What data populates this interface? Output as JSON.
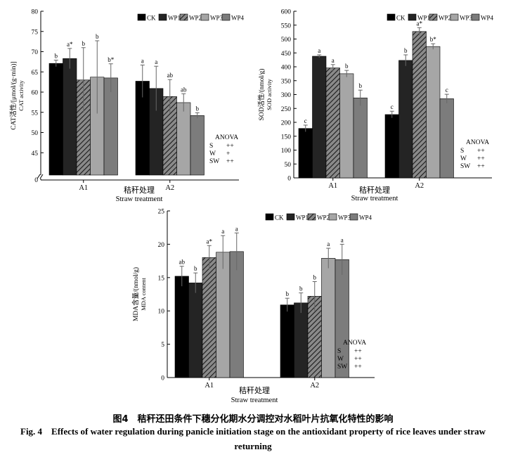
{
  "legend_labels": [
    "CK",
    "WP1",
    "WP2",
    "WP3",
    "WP4"
  ],
  "series_colors": [
    "#000000",
    "#242424",
    "#555555",
    "#a6a6a6",
    "#7c7c7c"
  ],
  "anova_title": "ANOVA",
  "caption_zh": "图4　秸秆还田条件下穗分化期水分调控对水稻叶片抗氧化特性的影响",
  "caption_en": "Fig. 4　Effects of water regulation during panicle initiation stage on the antioxidant property of rice leaves under straw returning",
  "chart_data": [
    {
      "type": "bar",
      "ylabel_zh": "CAT活性/[μmol/(g·min)]",
      "ylabel_en": "CAT activity",
      "xlabel_zh": "秸秆处理",
      "xlabel_en": "Straw treatment",
      "categories": [
        "A1",
        "A2"
      ],
      "axis_break": true,
      "ylim": [
        40,
        80
      ],
      "yticks": [
        45,
        50,
        55,
        60,
        65,
        70,
        75,
        80
      ],
      "ytick_low": 0,
      "grid": false,
      "legend_position": "top-right",
      "series": [
        {
          "name": "CK",
          "values": [
            67.1,
            62.7
          ],
          "errors": [
            0.8,
            4.0
          ],
          "labels": [
            "b",
            "a"
          ]
        },
        {
          "name": "WP1",
          "values": [
            68.3,
            60.9
          ],
          "errors": [
            2.5,
            5.5
          ],
          "labels": [
            "a*",
            "a"
          ]
        },
        {
          "name": "WP2",
          "values": [
            63.0,
            58.9
          ],
          "errors": [
            8.0,
            4.2
          ],
          "labels": [
            "b",
            "ab"
          ]
        },
        {
          "name": "WP3",
          "values": [
            63.7,
            57.4
          ],
          "errors": [
            9.0,
            2.2
          ],
          "labels": [
            "b",
            "ab"
          ]
        },
        {
          "name": "WP4",
          "values": [
            63.5,
            54.2
          ],
          "errors": [
            3.5,
            0.7
          ],
          "labels": [
            "b*",
            "b"
          ]
        }
      ],
      "anova": [
        [
          "S",
          "++"
        ],
        [
          "W",
          "+"
        ],
        [
          "SW",
          "++"
        ]
      ]
    },
    {
      "type": "bar",
      "ylabel_zh": "SOD活性/(nmol/g)",
      "ylabel_en": "SOD activity",
      "xlabel_zh": "秸秆处理",
      "xlabel_en": "Straw treatment",
      "categories": [
        "A1",
        "A2"
      ],
      "ylim": [
        0,
        600
      ],
      "yticks": [
        0,
        50,
        100,
        150,
        200,
        250,
        300,
        350,
        400,
        450,
        500,
        550,
        600
      ],
      "grid": false,
      "legend_position": "top-right",
      "series": [
        {
          "name": "CK",
          "values": [
            178,
            228
          ],
          "errors": [
            12,
            12
          ],
          "labels": [
            "c",
            "c"
          ]
        },
        {
          "name": "WP1",
          "values": [
            438,
            423
          ],
          "errors": [
            5,
            20
          ],
          "labels": [
            "a",
            "b"
          ]
        },
        {
          "name": "WP2",
          "values": [
            396,
            527
          ],
          "errors": [
            12,
            14
          ],
          "labels": [
            "a",
            "a*"
          ]
        },
        {
          "name": "WP3",
          "values": [
            375,
            473
          ],
          "errors": [
            12,
            10
          ],
          "labels": [
            "b",
            "b*"
          ]
        },
        {
          "name": "WP4",
          "values": [
            288,
            285
          ],
          "errors": [
            28,
            16
          ],
          "labels": [
            "b",
            "c"
          ]
        }
      ],
      "anova": [
        [
          "S",
          "++"
        ],
        [
          "W",
          "++"
        ],
        [
          "SW",
          "++"
        ]
      ]
    },
    {
      "type": "bar",
      "ylabel_zh": "MDA含量/(nmol/g)",
      "ylabel_en": "MDA content",
      "xlabel_zh": "秸秆处理",
      "xlabel_en": "Straw treatment",
      "categories": [
        "A1",
        "A2"
      ],
      "ylim": [
        0,
        25
      ],
      "yticks": [
        0,
        5,
        10,
        15,
        20,
        25
      ],
      "grid": false,
      "legend_position": "top-right",
      "series": [
        {
          "name": "CK",
          "values": [
            15.2,
            10.9
          ],
          "errors": [
            1.5,
            1.0
          ],
          "labels": [
            "ab",
            "b"
          ]
        },
        {
          "name": "WP1",
          "values": [
            14.2,
            11.2
          ],
          "errors": [
            1.5,
            1.5
          ],
          "labels": [
            "b",
            "b"
          ]
        },
        {
          "name": "WP2",
          "values": [
            18.0,
            12.2
          ],
          "errors": [
            1.8,
            2.2
          ],
          "labels": [
            "a*",
            "b"
          ]
        },
        {
          "name": "WP3",
          "values": [
            18.8,
            17.9
          ],
          "errors": [
            2.5,
            1.5
          ],
          "labels": [
            "a",
            "a"
          ]
        },
        {
          "name": "WP4",
          "values": [
            18.9,
            17.7
          ],
          "errors": [
            2.8,
            2.3
          ],
          "labels": [
            "a",
            "a"
          ]
        }
      ],
      "anova": [
        [
          "S",
          "++"
        ],
        [
          "W",
          "++"
        ],
        [
          "SW",
          "++"
        ]
      ]
    }
  ]
}
